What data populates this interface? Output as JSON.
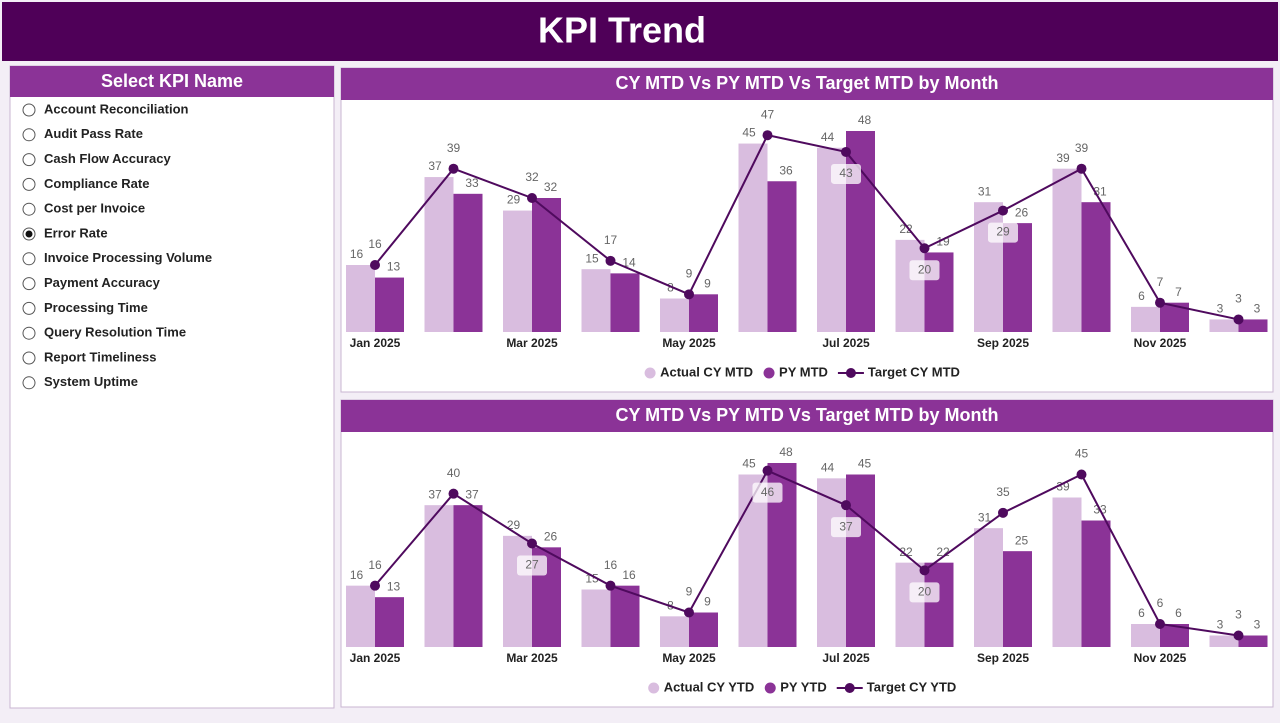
{
  "header": {
    "title": "KPI Trend"
  },
  "slicer": {
    "title": "Select KPI Name",
    "options": [
      "Account Reconciliation",
      "Audit Pass Rate",
      "Cash Flow Accuracy",
      "Compliance Rate",
      "Cost per Invoice",
      "Error Rate",
      "Invoice Processing Volume",
      "Payment Accuracy",
      "Processing Time",
      "Query Resolution Time",
      "Report Timeliness",
      "System Uptime"
    ],
    "selected_index": 5
  },
  "chart_data": [
    {
      "type": "bar",
      "title": "CY MTD Vs PY MTD Vs Target MTD by Month",
      "categories": [
        "Jan 2025",
        null,
        "Mar 2025",
        null,
        "May 2025",
        null,
        "Jul 2025",
        null,
        "Sep 2025",
        null,
        "Nov 2025",
        null
      ],
      "series": [
        {
          "name": "Actual CY MTD",
          "color": "#d9bddf",
          "values": [
            16,
            37,
            29,
            15,
            8,
            45,
            44,
            22,
            31,
            39,
            6,
            3
          ]
        },
        {
          "name": "PY MTD",
          "color": "#8b3397",
          "values": [
            13,
            33,
            32,
            14,
            9,
            36,
            48,
            19,
            26,
            31,
            7,
            3
          ]
        },
        {
          "name": "Target CY MTD",
          "type": "line",
          "color": "#4f0a5e",
          "values": [
            16,
            39,
            32,
            17,
            9,
            47,
            43,
            20,
            29,
            39,
            7,
            3
          ]
        }
      ]
    },
    {
      "type": "bar",
      "title": "CY MTD Vs PY MTD Vs Target MTD by Month",
      "categories": [
        "Jan 2025",
        null,
        "Mar 2025",
        null,
        "May 2025",
        null,
        "Jul 2025",
        null,
        "Sep 2025",
        null,
        "Nov 2025",
        null
      ],
      "series": [
        {
          "name": "Actual CY YTD",
          "color": "#d9bddf",
          "values": [
            16,
            37,
            29,
            15,
            8,
            45,
            44,
            22,
            31,
            39,
            6,
            3
          ]
        },
        {
          "name": "PY YTD",
          "color": "#8b3397",
          "values": [
            13,
            37,
            26,
            16,
            9,
            48,
            45,
            22,
            25,
            33,
            6,
            3
          ]
        },
        {
          "name": "Target CY YTD",
          "type": "line",
          "color": "#4f0a5e",
          "values": [
            16,
            40,
            27,
            16,
            9,
            46,
            37,
            20,
            35,
            45,
            6,
            3
          ]
        }
      ]
    }
  ]
}
